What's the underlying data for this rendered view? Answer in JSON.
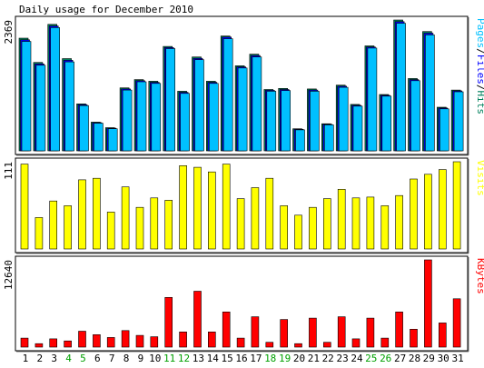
{
  "title": "Daily usage for December 2010",
  "colors": {
    "background": "#ffffff",
    "panel_frame": "#000000",
    "hits": "#00805c",
    "files": "#0000ff",
    "pages": "#00c0ff",
    "visits": "#ffff00",
    "kbytes": "#ff0000",
    "weekend_label": "#00a000",
    "weekday_label": "#000000"
  },
  "days": [
    "1",
    "2",
    "3",
    "4",
    "5",
    "6",
    "7",
    "8",
    "9",
    "10",
    "11",
    "12",
    "13",
    "14",
    "15",
    "16",
    "17",
    "18",
    "19",
    "20",
    "21",
    "22",
    "23",
    "24",
    "25",
    "26",
    "27",
    "28",
    "29",
    "30",
    "31"
  ],
  "weekend_days": [
    "4",
    "5",
    "11",
    "12",
    "18",
    "19",
    "25",
    "26"
  ],
  "chart_data": [
    {
      "type": "bar",
      "name": "hits-files-pages",
      "max_label": "2369",
      "legend": [
        {
          "text": "Pages",
          "color": "#00c0ff"
        },
        {
          "text": "/",
          "color": "#000000"
        },
        {
          "text": "Files",
          "color": "#0000ff"
        },
        {
          "text": "/",
          "color": "#000000"
        },
        {
          "text": "Hits",
          "color": "#00805c"
        }
      ],
      "ylim": [
        0,
        2369
      ],
      "series": [
        {
          "name": "Hits",
          "values": [
            2040,
            1600,
            2290,
            1670,
            850,
            520,
            420,
            1140,
            1290,
            1260,
            1890,
            1080,
            1700,
            1260,
            2080,
            1540,
            1750,
            1110,
            1130,
            400,
            1120,
            490,
            1190,
            840,
            1900,
            1020,
            2369,
            1310,
            2160,
            790,
            1100
          ]
        },
        {
          "name": "Files",
          "values": [
            2010,
            1575,
            2260,
            1640,
            835,
            510,
            410,
            1120,
            1270,
            1240,
            1870,
            1060,
            1675,
            1240,
            2060,
            1520,
            1725,
            1095,
            1110,
            390,
            1100,
            480,
            1170,
            825,
            1880,
            1005,
            2340,
            1290,
            2130,
            775,
            1085
          ]
        },
        {
          "name": "Pages",
          "values": [
            1980,
            1550,
            2230,
            1610,
            820,
            500,
            400,
            1100,
            1250,
            1220,
            1850,
            1040,
            1650,
            1220,
            2030,
            1500,
            1700,
            1080,
            1090,
            380,
            1080,
            470,
            1150,
            810,
            1860,
            990,
            2310,
            1270,
            2100,
            760,
            1070
          ]
        }
      ]
    },
    {
      "type": "bar",
      "name": "visits",
      "max_label": "111",
      "legend": [
        {
          "text": "Visits",
          "color": "#ffff00"
        }
      ],
      "ylim": [
        0,
        111
      ],
      "series": [
        {
          "name": "Visits",
          "values": [
            108,
            40,
            61,
            55,
            88,
            90,
            47,
            79,
            53,
            65,
            62,
            106,
            104,
            98,
            108,
            64,
            78,
            90,
            55,
            43,
            53,
            64,
            76,
            65,
            66,
            55,
            68,
            89,
            95,
            101,
            111
          ]
        }
      ]
    },
    {
      "type": "bar",
      "name": "kbytes",
      "max_label": "12640",
      "legend": [
        {
          "text": "KBytes",
          "color": "#ff0000"
        }
      ],
      "ylim": [
        0,
        12640
      ],
      "series": [
        {
          "name": "KBytes",
          "values": [
            1300,
            500,
            1200,
            900,
            2300,
            1800,
            1400,
            2400,
            1700,
            1500,
            7200,
            2200,
            8100,
            2200,
            5100,
            1300,
            4400,
            700,
            4000,
            500,
            4200,
            700,
            4400,
            1200,
            4200,
            1300,
            5100,
            2600,
            12640,
            3500,
            7000
          ]
        }
      ]
    }
  ]
}
